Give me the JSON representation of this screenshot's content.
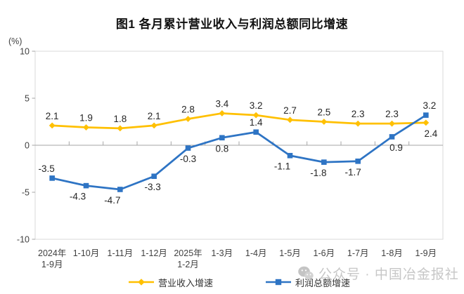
{
  "chart_data": {
    "type": "line",
    "title": "图1 各月累计营业收入与利润总额同比增速",
    "ylabel": "(%)",
    "xlabel": "",
    "ylim": [
      -10,
      10
    ],
    "yticks": [
      10,
      5,
      0,
      -5,
      -10
    ],
    "grid": false,
    "legend_position": "bottom",
    "categories": [
      [
        "2024年",
        "1-9月"
      ],
      [
        "1-10月"
      ],
      [
        "1-11月"
      ],
      [
        "1-12月"
      ],
      [
        "2025年",
        "1-2月"
      ],
      [
        "1-3月"
      ],
      [
        "1-4月"
      ],
      [
        "1-5月"
      ],
      [
        "1-6月"
      ],
      [
        "1-7月"
      ],
      [
        "1-8月"
      ],
      [
        "1-9月"
      ]
    ],
    "series": [
      {
        "key": "revenue-growth",
        "name": "营业收入增速",
        "color": "#FFC000",
        "marker": "diamond",
        "values": [
          2.1,
          1.9,
          1.8,
          2.1,
          2.8,
          3.4,
          3.2,
          2.7,
          2.5,
          2.3,
          2.3,
          2.4
        ],
        "label_pos": [
          "above",
          "above",
          "above",
          "above",
          "above",
          "above",
          "above",
          "above",
          "above",
          "above",
          "above",
          "below"
        ],
        "label_dx": [
          0,
          0,
          0,
          0,
          0,
          0,
          0,
          0,
          0,
          0,
          0,
          7
        ]
      },
      {
        "key": "profit-growth",
        "name": "利润总额增速",
        "color": "#2E74C4",
        "marker": "square",
        "values": [
          -3.5,
          -4.3,
          -4.7,
          -3.3,
          -0.3,
          0.8,
          1.4,
          -1.1,
          -1.8,
          -1.7,
          0.9,
          3.2
        ],
        "label_pos": [
          "above",
          "below",
          "below",
          "below",
          "below",
          "below",
          "above",
          "below",
          "below",
          "below",
          "below",
          "above"
        ],
        "label_dx": [
          -8,
          -12,
          -11,
          -2,
          0,
          0,
          0,
          -11,
          -8,
          -7,
          6,
          5
        ]
      }
    ]
  },
  "watermark": {
    "icon": "wechat-icon",
    "text": "公众号 · 中国冶金报社"
  }
}
